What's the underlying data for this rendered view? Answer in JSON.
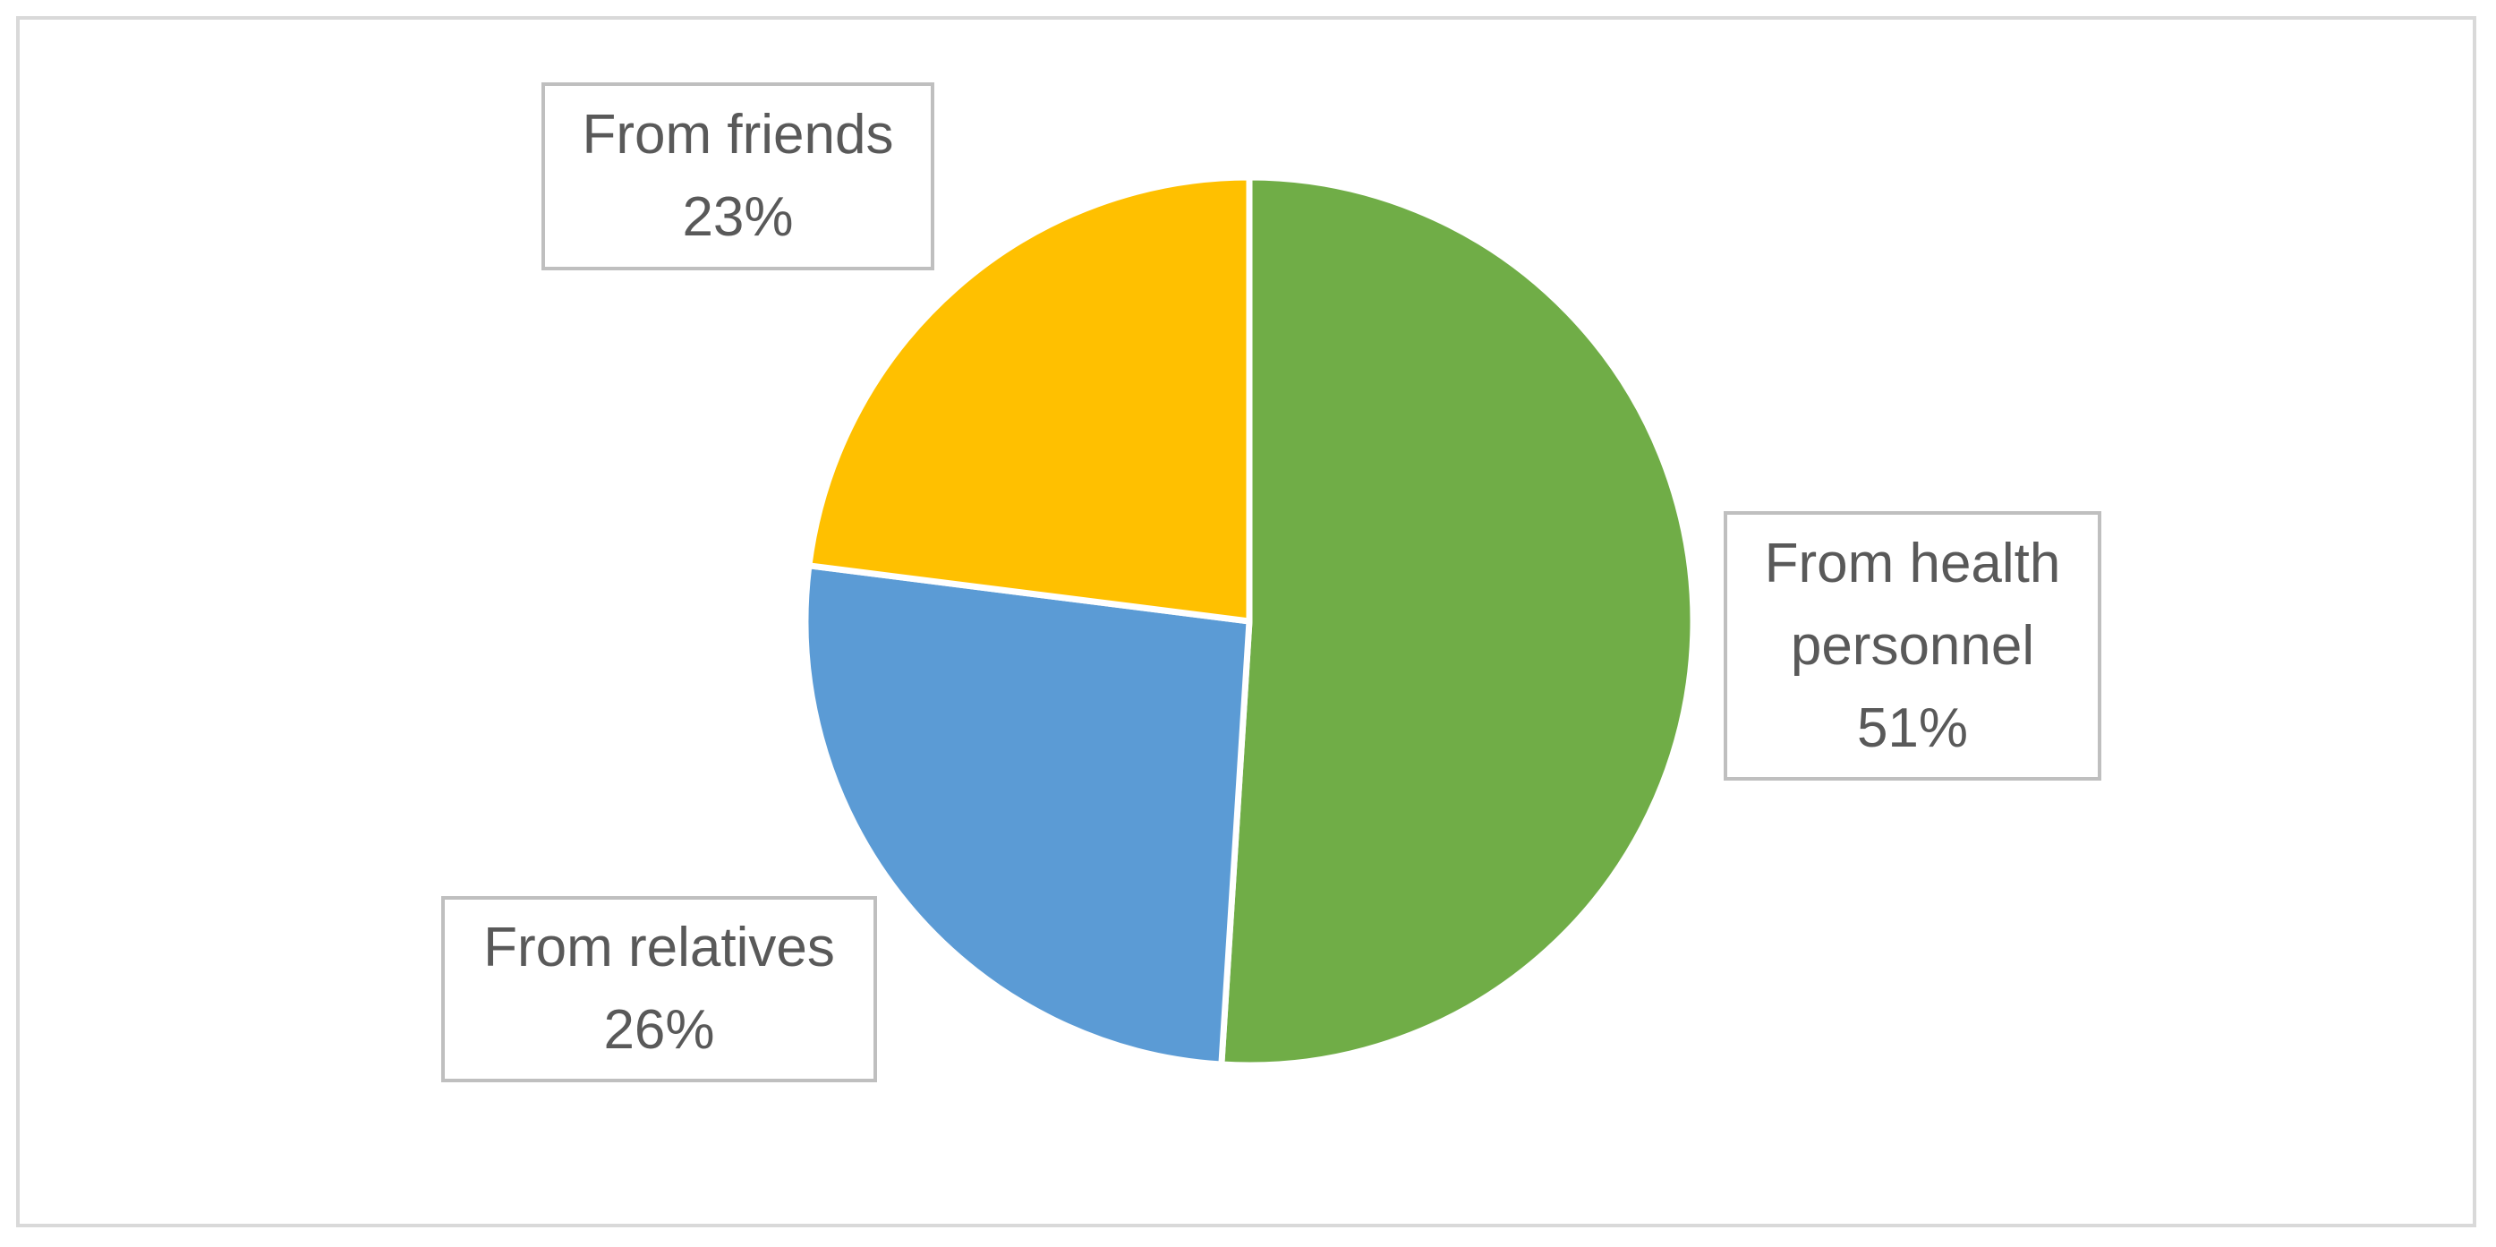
{
  "chart_data": {
    "type": "pie",
    "categories": [
      "From health personnel",
      "From relatives",
      "From friends"
    ],
    "values": [
      51,
      26,
      23
    ],
    "value_labels": [
      "51%",
      "26%",
      "23%"
    ],
    "colors": [
      "#70ad47",
      "#5b9bd5",
      "#ffc000"
    ]
  }
}
